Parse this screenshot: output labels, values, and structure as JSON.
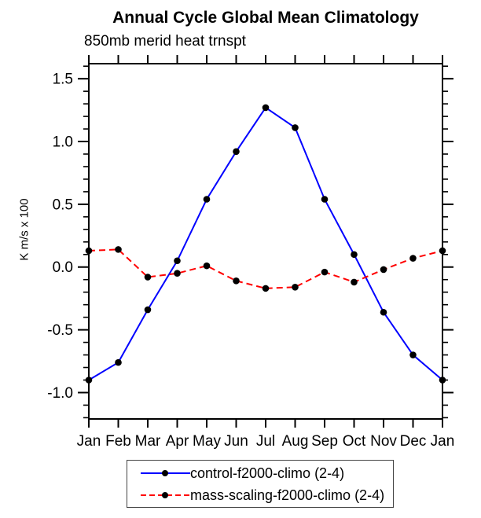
{
  "page": {
    "title": "Annual Cycle Global Mean Climatology",
    "subtitle": "850mb merid heat trnspt"
  },
  "chart_data": {
    "type": "line",
    "title": "Annual Cycle Global Mean Climatology",
    "subtitle": "850mb merid heat trnspt",
    "xlabel": "",
    "ylabel": "K m/s x 100",
    "categories": [
      "Jan",
      "Feb",
      "Mar",
      "Apr",
      "May",
      "Jun",
      "Jul",
      "Aug",
      "Sep",
      "Oct",
      "Nov",
      "Dec",
      "Jan"
    ],
    "ylim": [
      -1.21,
      1.62
    ],
    "yticks_major": [
      -1.0,
      -0.5,
      0.0,
      0.5,
      1.0,
      1.5
    ],
    "ytick_labels": [
      "-1.0",
      "-0.5",
      "0.0",
      "0.5",
      "1.0",
      "1.5"
    ],
    "ytick_minor_step": 0.1,
    "grid": false,
    "legend_position": "bottom-center",
    "frame_color": "#000000",
    "marker": {
      "shape": "circle",
      "color": "#000000",
      "radius": 4.3
    },
    "series": [
      {
        "name": "control-f2000-climo (2-4)",
        "color": "#0000ff",
        "style": "solid",
        "values": [
          -0.9,
          -0.76,
          -0.34,
          0.05,
          0.54,
          0.92,
          1.27,
          1.11,
          0.54,
          0.1,
          -0.36,
          -0.7,
          -0.9
        ]
      },
      {
        "name": "mass-scaling-f2000-climo (2-4)",
        "color": "#ff0000",
        "style": "dashed",
        "values": [
          0.13,
          0.14,
          -0.08,
          -0.05,
          0.01,
          -0.11,
          -0.17,
          -0.16,
          -0.04,
          -0.12,
          -0.02,
          0.07,
          0.13
        ]
      }
    ]
  }
}
